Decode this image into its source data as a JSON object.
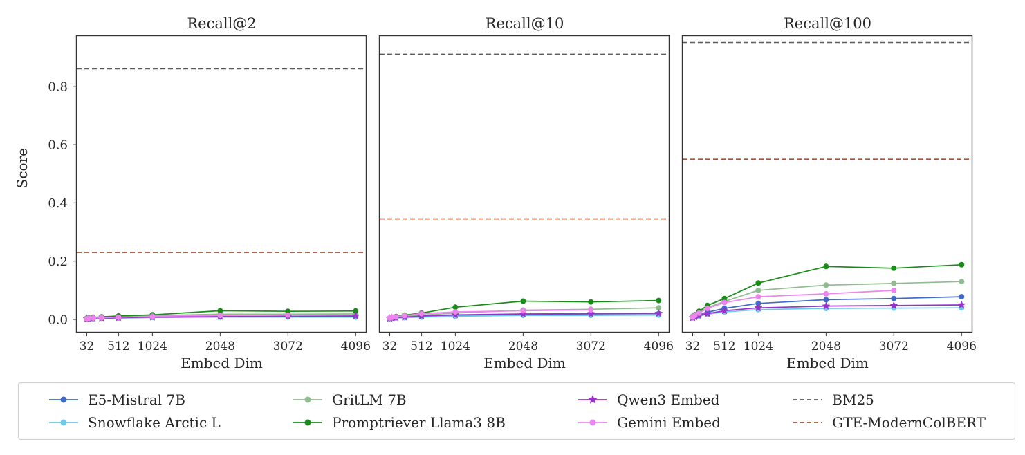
{
  "figure": {
    "background": "#ffffff",
    "spine_color": "#333333",
    "tick_color": "#262626"
  },
  "chart_data": [
    {
      "type": "line",
      "title": "Recall@2",
      "xlabel": "Embed Dim",
      "ylabel": "Score",
      "xticks": [
        32,
        512,
        1024,
        2048,
        3072,
        4096
      ],
      "yticks": [
        0.0,
        0.2,
        0.4,
        0.6,
        0.8
      ],
      "xlim": [
        -130,
        4260
      ],
      "ylim": [
        -0.045,
        0.975
      ],
      "x": [
        32,
        64,
        128,
        256,
        512,
        1024,
        2048,
        3072,
        4096
      ],
      "series": [
        {
          "name": "E5-Mistral 7B",
          "color": "#3F69C9",
          "marker": "circle",
          "values": [
            0.002,
            0.002,
            0.003,
            0.004,
            0.005,
            0.007,
            0.009,
            0.01,
            0.011
          ]
        },
        {
          "name": "Snowflake Arctic L",
          "color": "#6EC9E8",
          "marker": "circle",
          "values": [
            0.002,
            0.003,
            0.004,
            0.005,
            0.006,
            0.007,
            0.008,
            0.008,
            0.008
          ]
        },
        {
          "name": "GritLM 7B",
          "color": "#8FBC8F",
          "marker": "circle",
          "values": [
            0.003,
            0.004,
            0.005,
            0.007,
            0.009,
            0.013,
            0.018,
            0.018,
            0.019
          ]
        },
        {
          "name": "Promptriever Llama3 8B",
          "color": "#178C17",
          "marker": "circle",
          "values": [
            0.004,
            0.005,
            0.007,
            0.009,
            0.012,
            0.016,
            0.03,
            0.028,
            0.029
          ]
        },
        {
          "name": "Qwen3 Embed",
          "color": "#9932CC",
          "marker": "star",
          "values": [
            0.002,
            0.003,
            0.004,
            0.005,
            0.006,
            0.008,
            0.01,
            0.011,
            0.012
          ]
        },
        {
          "name": "Gemini Embed",
          "color": "#EE82EE",
          "marker": "circle",
          "values": [
            0.003,
            0.004,
            0.005,
            0.006,
            0.008,
            0.011,
            0.014,
            0.015
          ]
        },
        {
          "name": "BM25",
          "color": "#5A5A5A",
          "dashed": true,
          "hline": 0.86
        },
        {
          "name": "GTE-ModernColBERT",
          "color": "#A8512E",
          "dashed": true,
          "hline": 0.23
        }
      ]
    },
    {
      "type": "line",
      "title": "Recall@10",
      "xlabel": "Embed Dim",
      "ylabel": "Score",
      "xticks": [
        32,
        512,
        1024,
        2048,
        3072,
        4096
      ],
      "yticks": [
        0.0,
        0.2,
        0.4,
        0.6,
        0.8
      ],
      "xlim": [
        -130,
        4260
      ],
      "ylim": [
        -0.045,
        0.975
      ],
      "x": [
        32,
        64,
        128,
        256,
        512,
        1024,
        2048,
        3072,
        4096
      ],
      "series": [
        {
          "name": "E5-Mistral 7B",
          "color": "#3F69C9",
          "marker": "circle",
          "values": [
            0.003,
            0.004,
            0.005,
            0.007,
            0.009,
            0.013,
            0.018,
            0.019,
            0.02
          ]
        },
        {
          "name": "Snowflake Arctic L",
          "color": "#6EC9E8",
          "marker": "circle",
          "values": [
            0.003,
            0.004,
            0.005,
            0.006,
            0.008,
            0.011,
            0.014,
            0.014,
            0.015
          ]
        },
        {
          "name": "GritLM 7B",
          "color": "#8FBC8F",
          "marker": "circle",
          "values": [
            0.004,
            0.006,
            0.008,
            0.011,
            0.015,
            0.022,
            0.032,
            0.035,
            0.04
          ]
        },
        {
          "name": "Promptriever Llama3 8B",
          "color": "#178C17",
          "marker": "circle",
          "values": [
            0.005,
            0.007,
            0.01,
            0.015,
            0.022,
            0.042,
            0.063,
            0.06,
            0.065
          ]
        },
        {
          "name": "Qwen3 Embed",
          "color": "#9932CC",
          "marker": "star",
          "values": [
            0.004,
            0.005,
            0.006,
            0.008,
            0.012,
            0.016,
            0.019,
            0.02,
            0.021
          ]
        },
        {
          "name": "Gemini Embed",
          "color": "#EE82EE",
          "marker": "circle",
          "values": [
            0.005,
            0.007,
            0.009,
            0.013,
            0.02,
            0.026,
            0.03,
            0.033
          ]
        },
        {
          "name": "BM25",
          "color": "#5A5A5A",
          "dashed": true,
          "hline": 0.91
        },
        {
          "name": "GTE-ModernColBERT",
          "color": "#A8512E",
          "dashed": true,
          "hline": 0.345
        }
      ]
    },
    {
      "type": "line",
      "title": "Recall@100",
      "xlabel": "Embed Dim",
      "ylabel": "Score",
      "xticks": [
        32,
        512,
        1024,
        2048,
        3072,
        4096
      ],
      "yticks": [
        0.0,
        0.2,
        0.4,
        0.6,
        0.8
      ],
      "xlim": [
        -130,
        4260
      ],
      "ylim": [
        -0.045,
        0.975
      ],
      "x": [
        32,
        64,
        128,
        256,
        512,
        1024,
        2048,
        3072,
        4096
      ],
      "series": [
        {
          "name": "E5-Mistral 7B",
          "color": "#3F69C9",
          "marker": "circle",
          "values": [
            0.006,
            0.01,
            0.016,
            0.025,
            0.038,
            0.055,
            0.068,
            0.072,
            0.078
          ]
        },
        {
          "name": "Snowflake Arctic L",
          "color": "#6EC9E8",
          "marker": "circle",
          "values": [
            0.005,
            0.008,
            0.012,
            0.018,
            0.026,
            0.034,
            0.038,
            0.039,
            0.04
          ]
        },
        {
          "name": "GritLM 7B",
          "color": "#8FBC8F",
          "marker": "circle",
          "values": [
            0.008,
            0.014,
            0.024,
            0.04,
            0.062,
            0.1,
            0.118,
            0.124,
            0.13
          ]
        },
        {
          "name": "Promptriever Llama3 8B",
          "color": "#178C17",
          "marker": "circle",
          "values": [
            0.01,
            0.016,
            0.028,
            0.048,
            0.072,
            0.125,
            0.182,
            0.176,
            0.188
          ]
        },
        {
          "name": "Qwen3 Embed",
          "color": "#9932CC",
          "marker": "star",
          "values": [
            0.006,
            0.009,
            0.013,
            0.02,
            0.03,
            0.04,
            0.046,
            0.048,
            0.05
          ]
        },
        {
          "name": "Gemini Embed",
          "color": "#EE82EE",
          "marker": "circle",
          "values": [
            0.008,
            0.014,
            0.022,
            0.038,
            0.058,
            0.078,
            0.088,
            0.1
          ]
        },
        {
          "name": "BM25",
          "color": "#5A5A5A",
          "dashed": true,
          "hline": 0.95
        },
        {
          "name": "GTE-ModernColBERT",
          "color": "#A8512E",
          "dashed": true,
          "hline": 0.55
        }
      ]
    }
  ],
  "legend": {
    "items": [
      {
        "label": "E5-Mistral 7B",
        "color": "#3F69C9",
        "dashed": false,
        "marker": "circle"
      },
      {
        "label": "Snowflake Arctic L",
        "color": "#6EC9E8",
        "dashed": false,
        "marker": "circle"
      },
      {
        "label": "GritLM 7B",
        "color": "#8FBC8F",
        "dashed": false,
        "marker": "circle"
      },
      {
        "label": "Promptriever Llama3 8B",
        "color": "#178C17",
        "dashed": false,
        "marker": "circle"
      },
      {
        "label": "Qwen3 Embed",
        "color": "#9932CC",
        "dashed": false,
        "marker": "star"
      },
      {
        "label": "Gemini Embed",
        "color": "#EE82EE",
        "dashed": false,
        "marker": "circle"
      },
      {
        "label": "BM25",
        "color": "#5A5A5A",
        "dashed": true,
        "marker": null
      },
      {
        "label": "GTE-ModernColBERT",
        "color": "#A8512E",
        "dashed": true,
        "marker": null
      }
    ]
  }
}
